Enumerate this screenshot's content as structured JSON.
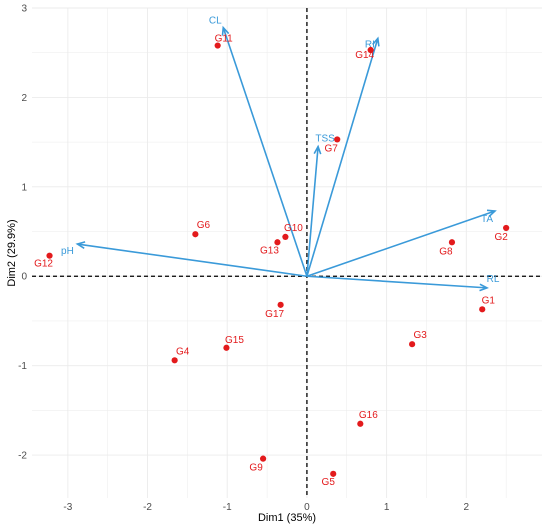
{
  "chart_data": {
    "type": "scatter",
    "subtype": "pca-biplot",
    "title": "",
    "xlabel": "Dim1 (35%)",
    "ylabel": "Dim2 (29.9%)",
    "xlim": [
      -3.45,
      2.95
    ],
    "ylim": [
      -2.48,
      3.0
    ],
    "xticks": [
      -3,
      -2,
      -1,
      0,
      1,
      2
    ],
    "yticks": [
      -2,
      -1,
      0,
      1,
      2,
      3
    ],
    "grid": true,
    "reference_lines": {
      "x": 0,
      "y": 0,
      "style": "dashed"
    },
    "colors": {
      "points": "#e31a1c",
      "vectors": "#3a9ad9",
      "grid": "#ebebeb",
      "reference": "#000000"
    },
    "points": [
      {
        "label": "G1",
        "x": 2.2,
        "y": -0.37
      },
      {
        "label": "G2",
        "x": 2.5,
        "y": 0.54
      },
      {
        "label": "G3",
        "x": 1.32,
        "y": -0.76
      },
      {
        "label": "G4",
        "x": -1.66,
        "y": -0.94
      },
      {
        "label": "G5",
        "x": 0.33,
        "y": -2.21
      },
      {
        "label": "G6",
        "x": -1.4,
        "y": 0.47
      },
      {
        "label": "G7",
        "x": 0.38,
        "y": 1.53
      },
      {
        "label": "G8",
        "x": 1.82,
        "y": 0.38
      },
      {
        "label": "G9",
        "x": -0.55,
        "y": -2.04
      },
      {
        "label": "G10",
        "x": -0.27,
        "y": 0.44
      },
      {
        "label": "G11",
        "x": -1.12,
        "y": 2.58
      },
      {
        "label": "G12",
        "x": -3.23,
        "y": 0.23
      },
      {
        "label": "G13",
        "x": -0.37,
        "y": 0.38
      },
      {
        "label": "G14",
        "x": 0.8,
        "y": 2.53
      },
      {
        "label": "G15",
        "x": -1.01,
        "y": -0.8
      },
      {
        "label": "G16",
        "x": 0.67,
        "y": -1.65
      },
      {
        "label": "G17",
        "x": -0.33,
        "y": -0.32
      }
    ],
    "vectors": [
      {
        "label": "CL",
        "x": -1.05,
        "y": 2.78
      },
      {
        "label": "RI",
        "x": 0.89,
        "y": 2.66
      },
      {
        "label": "TSS",
        "x": 0.14,
        "y": 1.45
      },
      {
        "label": "TA",
        "x": 2.36,
        "y": 0.73
      },
      {
        "label": "RL",
        "x": 2.26,
        "y": -0.13
      },
      {
        "label": "pH",
        "x": -2.88,
        "y": 0.36
      }
    ]
  }
}
